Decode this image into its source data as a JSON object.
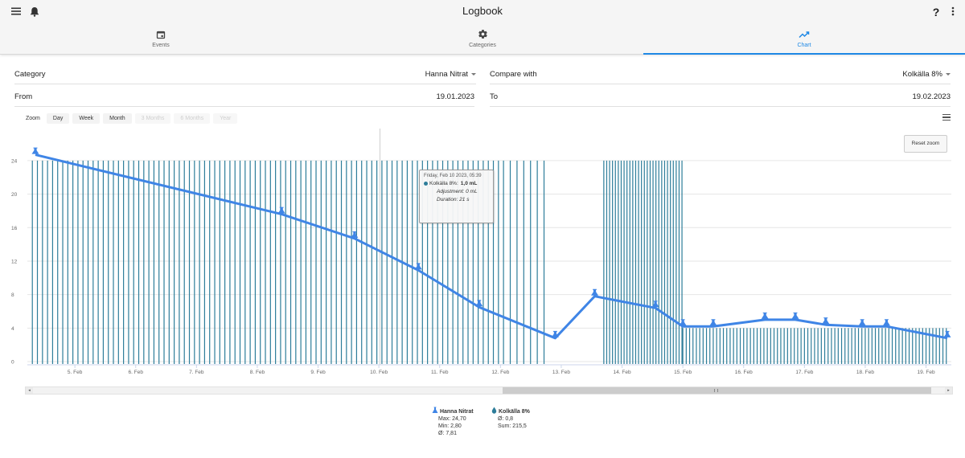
{
  "app": {
    "title": "Logbook",
    "menu_icon": "hamburger-menu-icon",
    "bell_icon": "bell-icon",
    "help_label": "?",
    "more_icon": "more-vertical-icon"
  },
  "tabs": [
    {
      "label": "Events",
      "icon": "calendar-icon",
      "active": false
    },
    {
      "label": "Categories",
      "icon": "gear-icon",
      "active": false
    },
    {
      "label": "Chart",
      "icon": "trending-up-icon",
      "active": true
    }
  ],
  "form": {
    "category_label": "Category",
    "category_value": "Hanna Nitrat",
    "compare_label": "Compare with",
    "compare_value": "Kolkälla 8%",
    "from_label": "From",
    "from_value": "19.01.2023",
    "to_label": "To",
    "to_value": "19.02.2023"
  },
  "zoom": {
    "label": "Zoom",
    "buttons": [
      {
        "label": "Day",
        "enabled": true
      },
      {
        "label": "Week",
        "enabled": true
      },
      {
        "label": "Month",
        "enabled": true
      },
      {
        "label": "3 Months",
        "enabled": false
      },
      {
        "label": "6 Months",
        "enabled": false
      },
      {
        "label": "Year",
        "enabled": false
      }
    ],
    "reset_label": "Reset zoom"
  },
  "tooltip": {
    "date": "Friday, Feb 10 2023, 05:39",
    "series": "Kolkälla 8%:",
    "value": "1,0 mL",
    "adjustment": "Adjustment: 0 mL",
    "duration": "Duration: 21 s"
  },
  "legend": {
    "series1": {
      "name": "Hanna Nitrat",
      "max": "Max: 24,70",
      "min": "Min: 2,80",
      "avg": "Ø: 7,81"
    },
    "series2": {
      "name": "Kolkälla 8%",
      "avg": "Ø: 0,8",
      "sum": "Sum: 215,5"
    }
  },
  "colors": {
    "line": "#3f85e6",
    "bars": "#2d7d9a",
    "accent": "#1e88e5"
  },
  "chart_data": {
    "type": "line",
    "ylim": [
      0,
      24
    ],
    "y_ticks": [
      0,
      4,
      8,
      12,
      16,
      20,
      24
    ],
    "x_tick_labels": [
      "5. Feb",
      "6. Feb",
      "7. Feb",
      "8. Feb",
      "9. Feb",
      "10. Feb",
      "11. Feb",
      "12. Feb",
      "13. Feb",
      "14. Feb",
      "15. Feb",
      "16. Feb",
      "17. Feb",
      "18. Feb",
      "19. Feb"
    ],
    "x_range_days": [
      4.3,
      19.4
    ],
    "series": [
      {
        "name": "Hanna Nitrat",
        "points": [
          [
            4.35,
            24.7
          ],
          [
            8.4,
            17.6
          ],
          [
            9.6,
            14.7
          ],
          [
            10.65,
            10.9
          ],
          [
            11.65,
            6.5
          ],
          [
            12.9,
            2.8
          ],
          [
            13.55,
            7.8
          ],
          [
            14.55,
            6.4
          ],
          [
            15.0,
            4.2
          ],
          [
            15.5,
            4.2
          ],
          [
            16.35,
            5.0
          ],
          [
            16.85,
            5.0
          ],
          [
            17.35,
            4.4
          ],
          [
            17.95,
            4.2
          ],
          [
            18.35,
            4.2
          ],
          [
            19.35,
            2.8
          ]
        ]
      },
      {
        "name": "Kolkälla 8%",
        "type": "bar",
        "segments": [
          {
            "from": 4.3,
            "to": 12.05,
            "per_day": 12,
            "value": 24
          },
          {
            "from": 12.05,
            "to": 12.8,
            "per_day": 9,
            "value": 24
          },
          {
            "from": 13.7,
            "to": 15.0,
            "per_day": 21,
            "value": 24
          },
          {
            "from": 15.0,
            "to": 19.35,
            "per_day": 18,
            "value": 4
          }
        ]
      }
    ]
  }
}
